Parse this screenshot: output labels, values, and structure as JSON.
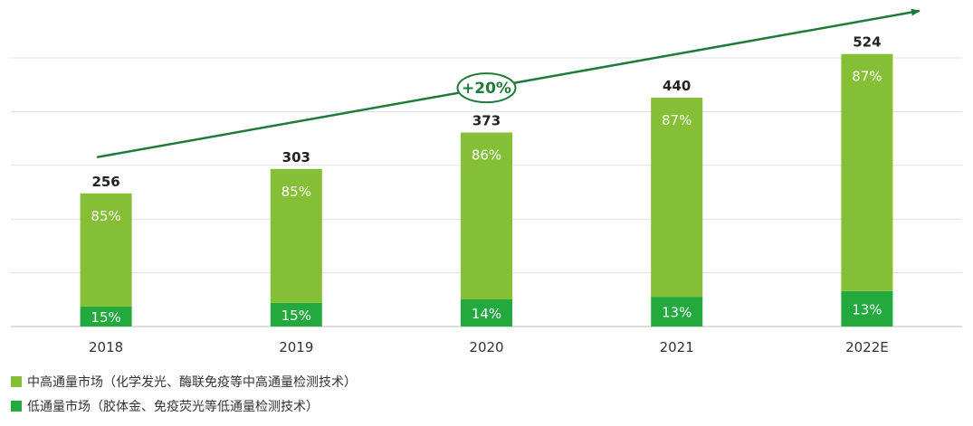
{
  "colors": {
    "high": "#85bf35",
    "low": "#22aa3e",
    "arrow": "#1f7a3a",
    "grid": "#e1e1e1",
    "axis": "#bbbbbb",
    "text": "#333333",
    "total": "#222222"
  },
  "chart_data": {
    "type": "bar",
    "stacked": true,
    "categories": [
      "2018",
      "2019",
      "2020",
      "2021",
      "2022E"
    ],
    "totals": [
      256,
      303,
      373,
      440,
      524
    ],
    "series": [
      {
        "name": "低通量市场（胶体金、免疫荧光等低通量检测技术）",
        "key": "low",
        "percent_labels": [
          "15%",
          "15%",
          "14%",
          "13%",
          "13%"
        ],
        "values": [
          38.4,
          45.45,
          52.22,
          57.2,
          68.12
        ]
      },
      {
        "name": "中高通量市场（化学发光、酶联免疫等中高通量检测技术）",
        "key": "high",
        "percent_labels": [
          "85%",
          "85%",
          "86%",
          "87%",
          "87%"
        ],
        "values": [
          217.6,
          257.55,
          320.78,
          382.8,
          455.88
        ]
      }
    ],
    "growth_annotation": "+20%",
    "ylim": [
      0,
      560
    ],
    "grid": true,
    "legend_position": "bottom-left"
  }
}
